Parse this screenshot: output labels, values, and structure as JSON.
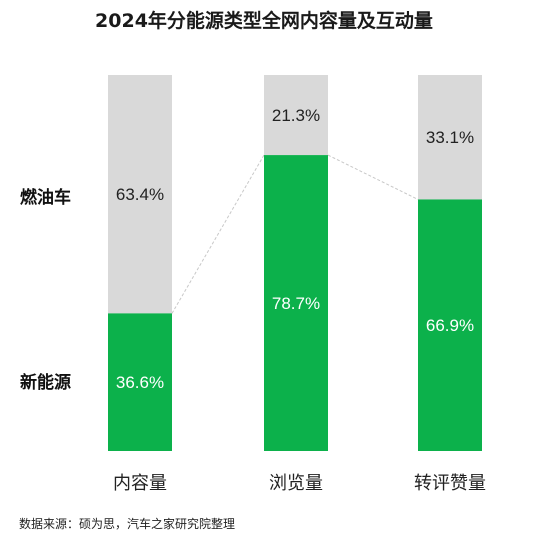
{
  "chart_data": {
    "type": "bar",
    "stacked": true,
    "percent_stacked": true,
    "title": "2024年分能源类型全网内容量及互动量",
    "categories": [
      "内容量",
      "浏览量",
      "转评赞量"
    ],
    "series": [
      {
        "name": "新能源",
        "values": [
          36.6,
          78.7,
          66.9
        ],
        "labels": [
          "36.6%",
          "78.7%",
          "66.9%"
        ],
        "color": "#0cb14b",
        "label_color": "#ffffff"
      },
      {
        "name": "燃油车",
        "values": [
          63.4,
          21.3,
          33.1
        ],
        "labels": [
          "63.4%",
          "21.3%",
          "33.1%"
        ],
        "color": "#d9d9d9",
        "label_color": "#222222"
      }
    ],
    "ylim": [
      0,
      100
    ],
    "grid": false,
    "legend": "left, inline with segments",
    "connector_lines": true,
    "connector_color": "#c8c8c8"
  },
  "source": "数据来源：硕为思，汽车之家研究院整理"
}
